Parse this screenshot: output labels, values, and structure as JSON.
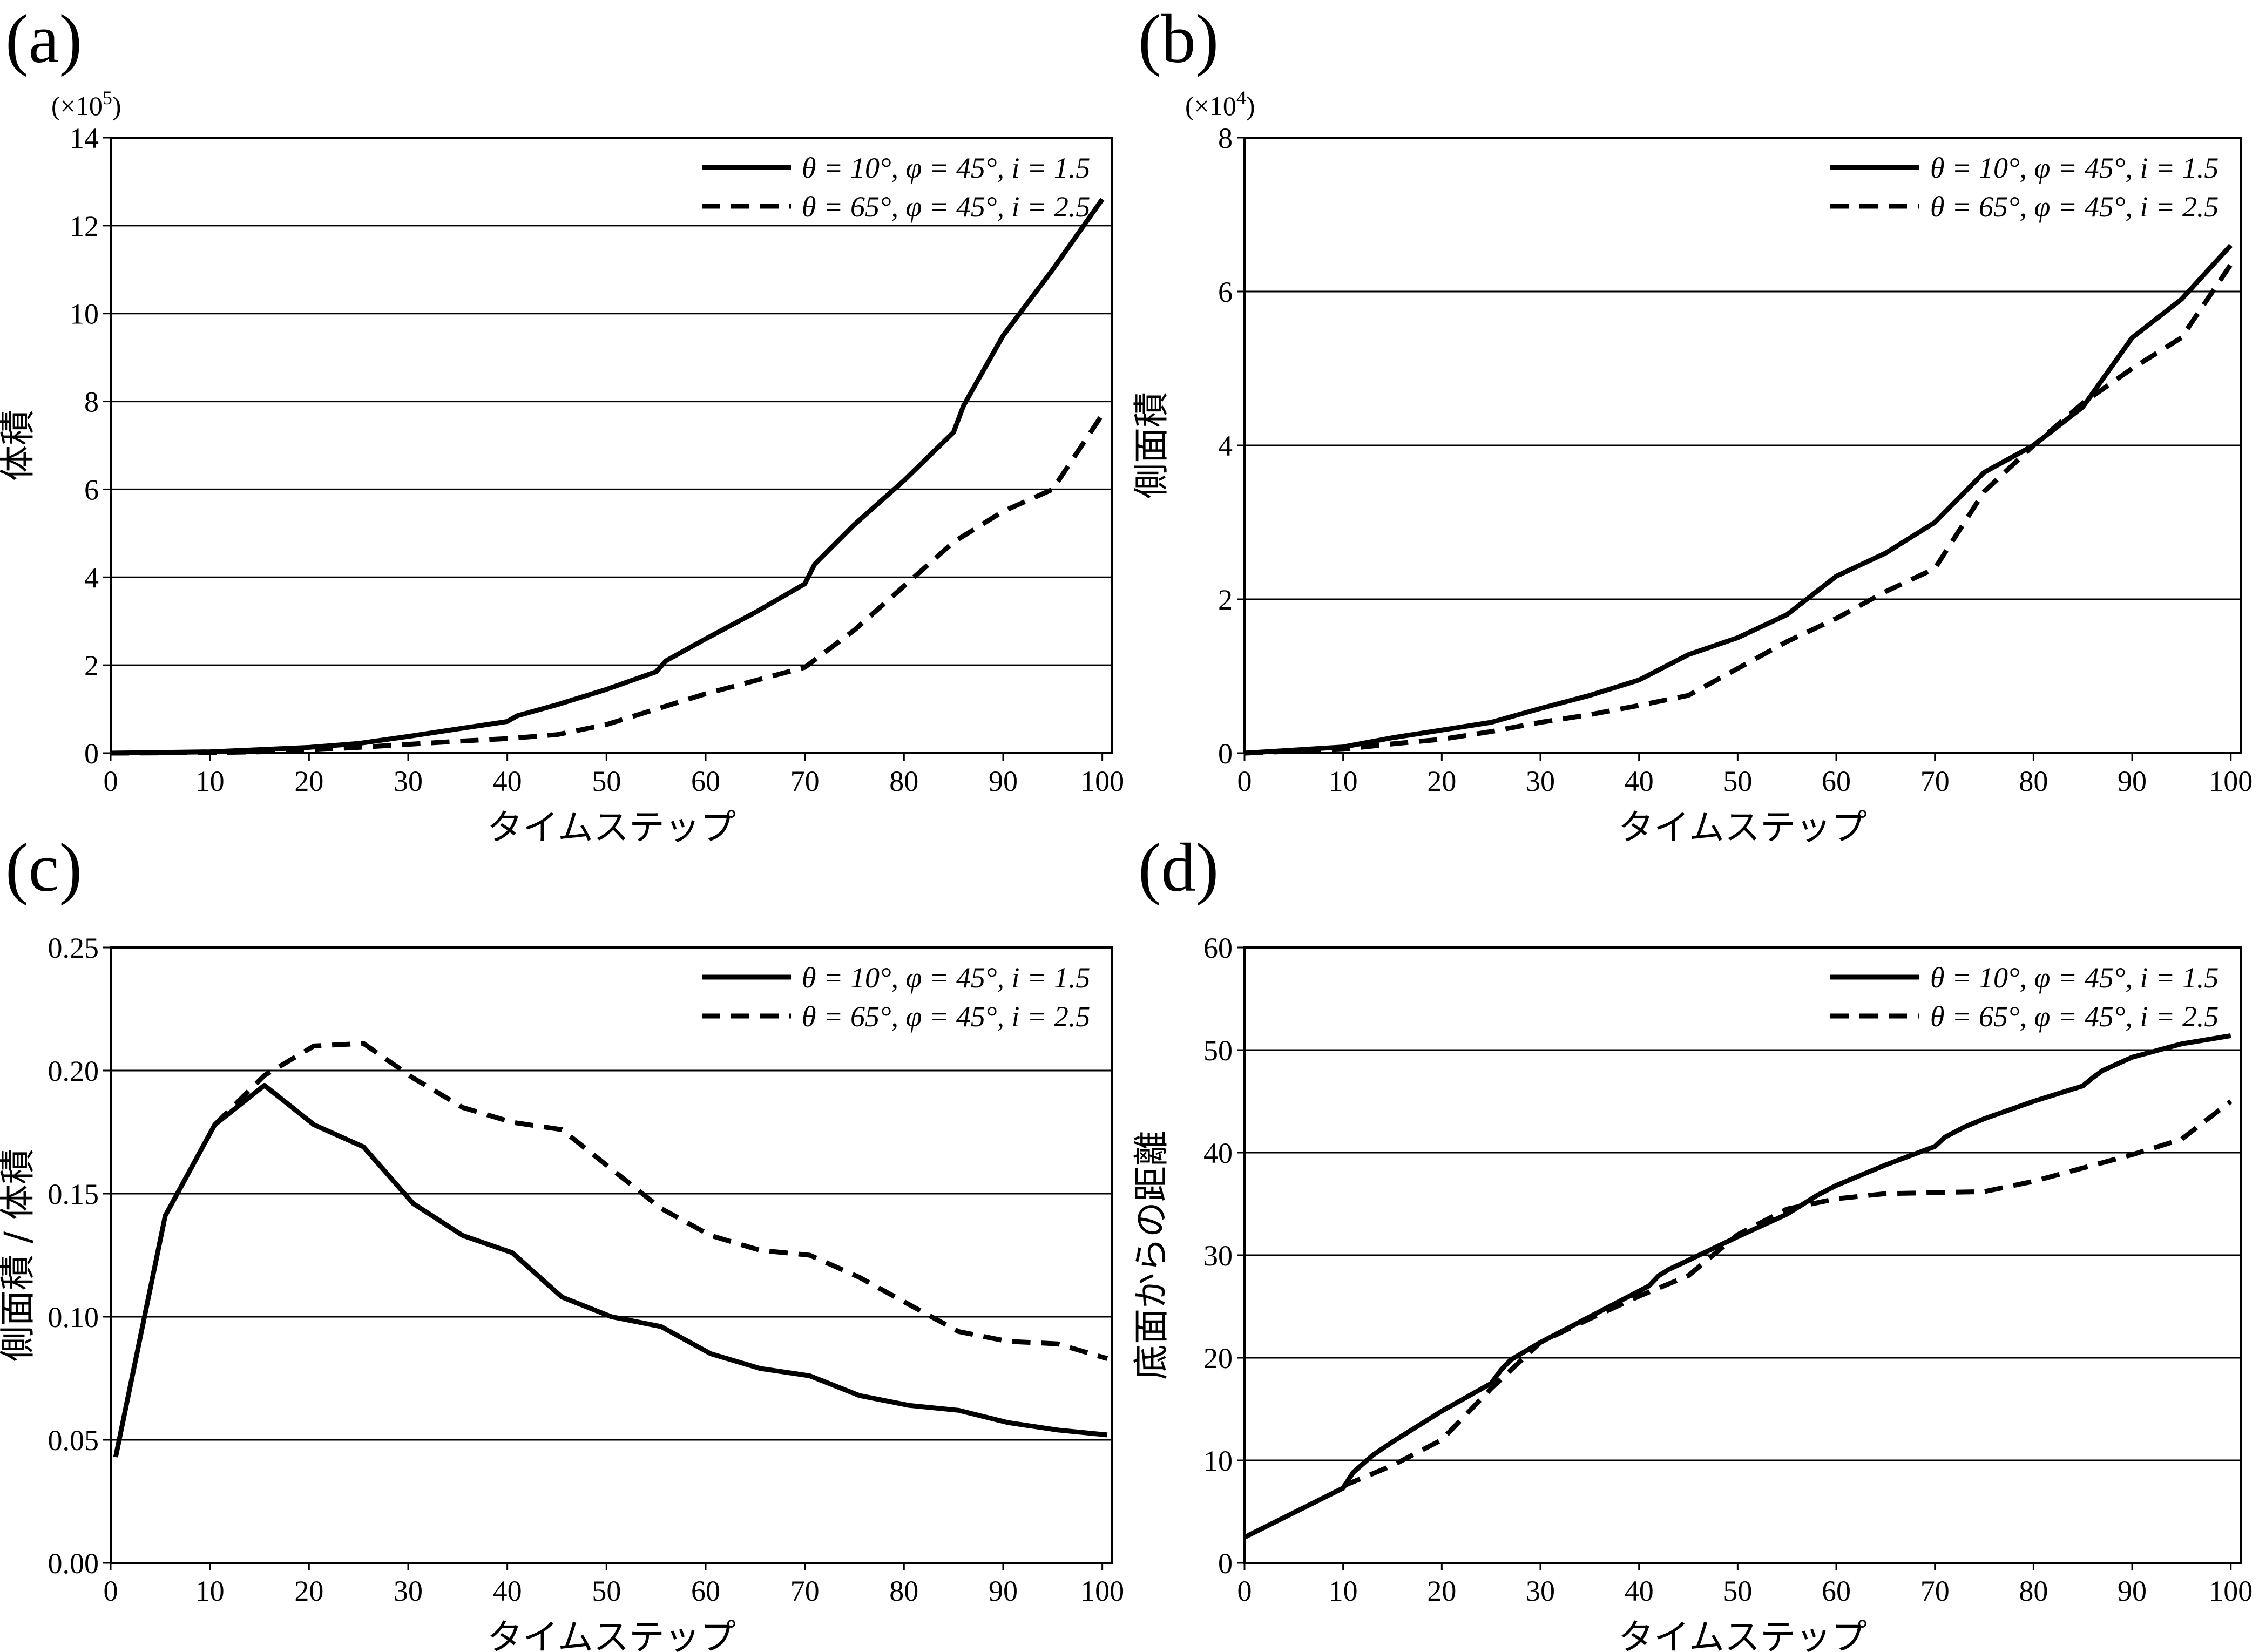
{
  "figure": {
    "legend_labels": [
      "θ = 10°, φ = 45°, i = 1.5",
      "θ = 65°, φ = 45°, i = 2.5"
    ]
  },
  "chart_data": [
    {
      "panel": "(a)",
      "type": "line",
      "xlabel": "タイムステップ",
      "ylabel": "体積",
      "scale_note": "(×10⁵)",
      "xlim": [
        0,
        101
      ],
      "ylim": [
        0,
        14
      ],
      "xticks": [
        0,
        10,
        20,
        30,
        40,
        50,
        60,
        70,
        80,
        90,
        100
      ],
      "yticks": [
        0,
        2,
        4,
        6,
        8,
        10,
        12,
        14
      ],
      "grid": "horizontal",
      "legend_position": "top-right",
      "series": [
        {
          "name": "θ = 10°, φ = 45°, i = 1.5",
          "style": "solid",
          "x": [
            0,
            10,
            20,
            25,
            30,
            35,
            40,
            41,
            45,
            50,
            55,
            56,
            60,
            65,
            70,
            71,
            75,
            80,
            85,
            86,
            90,
            95,
            100
          ],
          "y": [
            0,
            0.03,
            0.13,
            0.22,
            0.38,
            0.55,
            0.72,
            0.85,
            1.1,
            1.45,
            1.85,
            2.1,
            2.6,
            3.2,
            3.85,
            4.3,
            5.2,
            6.2,
            7.3,
            7.9,
            9.5,
            11.0,
            12.6
          ]
        },
        {
          "name": "θ = 65°, φ = 45°, i = 2.5",
          "style": "dashed",
          "x": [
            0,
            10,
            15,
            20,
            25,
            30,
            35,
            40,
            45,
            50,
            55,
            60,
            65,
            70,
            75,
            80,
            85,
            90,
            95,
            100
          ],
          "y": [
            0,
            0.01,
            0.03,
            0.07,
            0.13,
            0.2,
            0.27,
            0.33,
            0.42,
            0.65,
            1.0,
            1.35,
            1.65,
            1.95,
            2.8,
            3.8,
            4.8,
            5.5,
            6.0,
            7.7
          ]
        }
      ]
    },
    {
      "panel": "(b)",
      "type": "line",
      "xlabel": "タイムステップ",
      "ylabel": "側面積",
      "scale_note": "(×10⁴)",
      "xlim": [
        0,
        101
      ],
      "ylim": [
        0,
        8
      ],
      "xticks": [
        0,
        10,
        20,
        30,
        40,
        50,
        60,
        70,
        80,
        90,
        100
      ],
      "yticks": [
        0,
        2,
        4,
        6,
        8
      ],
      "grid": "horizontal",
      "legend_position": "top-right",
      "series": [
        {
          "name": "θ = 10°, φ = 45°, i = 1.5",
          "style": "solid",
          "x": [
            0,
            10,
            15,
            20,
            25,
            30,
            35,
            40,
            45,
            50,
            55,
            60,
            65,
            70,
            75,
            80,
            85,
            90,
            95,
            100
          ],
          "y": [
            0,
            0.08,
            0.2,
            0.3,
            0.4,
            0.58,
            0.75,
            0.95,
            1.28,
            1.5,
            1.8,
            2.3,
            2.6,
            3.0,
            3.65,
            4.0,
            4.5,
            5.4,
            5.9,
            6.6
          ]
        },
        {
          "name": "θ = 65°, φ = 45°, i = 2.5",
          "style": "dashed",
          "x": [
            0,
            10,
            15,
            20,
            25,
            30,
            35,
            40,
            45,
            50,
            55,
            60,
            65,
            70,
            75,
            80,
            85,
            90,
            95,
            100
          ],
          "y": [
            0,
            0.05,
            0.12,
            0.18,
            0.28,
            0.4,
            0.5,
            0.62,
            0.75,
            1.1,
            1.45,
            1.75,
            2.1,
            2.4,
            3.4,
            4.0,
            4.55,
            5.0,
            5.4,
            6.35
          ]
        }
      ]
    },
    {
      "panel": "(c)",
      "type": "line",
      "xlabel": "タイムステップ",
      "ylabel": "側面積 / 体積",
      "xlim": [
        0,
        101
      ],
      "ylim": [
        0,
        0.25
      ],
      "xticks": [
        0,
        10,
        20,
        30,
        40,
        50,
        60,
        70,
        80,
        90,
        100
      ],
      "yticks": [
        0.0,
        0.05,
        0.1,
        0.15,
        0.2,
        0.25
      ],
      "ytick_labels": [
        "0.00",
        "0.05",
        "0.10",
        "0.15",
        "0.20",
        "0.25"
      ],
      "grid": "horizontal",
      "legend_position": "top-right",
      "series": [
        {
          "name": "θ = 10°, φ = 45°, i = 1.5",
          "style": "solid",
          "x": [
            0.5,
            5.5,
            10.5,
            15.5,
            20.5,
            25.5,
            30.5,
            35.5,
            40.5,
            45.5,
            50.5,
            55.5,
            60.5,
            65.5,
            70.5,
            75.5,
            80.5,
            85.5,
            90.5,
            95.5,
            100.5
          ],
          "y": [
            0.043,
            0.141,
            0.178,
            0.194,
            0.178,
            0.169,
            0.146,
            0.133,
            0.126,
            0.108,
            0.1,
            0.096,
            0.085,
            0.079,
            0.076,
            0.068,
            0.064,
            0.062,
            0.057,
            0.054,
            0.052
          ]
        },
        {
          "name": "θ = 65°, φ = 45°, i = 2.5",
          "style": "dashed",
          "x": [
            10.5,
            15.5,
            20.5,
            25.5,
            30.5,
            35.5,
            40.5,
            45.5,
            50.5,
            55.5,
            60.5,
            65.5,
            70.5,
            75.5,
            80.5,
            85.5,
            90.5,
            95.5,
            100.5
          ],
          "y": [
            0.178,
            0.198,
            0.21,
            0.211,
            0.197,
            0.185,
            0.179,
            0.176,
            0.16,
            0.144,
            0.133,
            0.127,
            0.125,
            0.116,
            0.105,
            0.094,
            0.09,
            0.089,
            0.083
          ]
        }
      ]
    },
    {
      "panel": "(d)",
      "type": "line",
      "xlabel": "タイムステップ",
      "ylabel": "底面からの距離",
      "xlim": [
        0,
        101
      ],
      "ylim": [
        0,
        60
      ],
      "xticks": [
        0,
        10,
        20,
        30,
        40,
        50,
        60,
        70,
        80,
        90,
        100
      ],
      "yticks": [
        0,
        10,
        20,
        30,
        40,
        50,
        60
      ],
      "grid": "horizontal",
      "legend_position": "top-right",
      "series": [
        {
          "name": "θ = 10°, φ = 45°, i = 1.5",
          "style": "solid",
          "x": [
            0,
            10,
            11,
            13,
            15,
            20,
            25,
            26,
            27,
            30,
            35,
            40,
            41,
            42,
            43,
            45,
            50,
            55,
            56,
            58,
            60,
            65,
            70,
            71,
            72,
            73,
            75,
            80,
            85,
            86,
            87,
            90,
            95,
            100
          ],
          "y": [
            2.5,
            7.3,
            8.8,
            10.5,
            11.8,
            14.8,
            17.5,
            18.8,
            19.8,
            21.5,
            24.0,
            26.5,
            27.0,
            28.0,
            28.6,
            29.5,
            31.8,
            34.0,
            34.6,
            35.8,
            36.8,
            38.8,
            40.6,
            41.5,
            42.0,
            42.5,
            43.3,
            45.0,
            46.5,
            47.3,
            48.0,
            49.3,
            50.6,
            51.4
          ]
        },
        {
          "name": "θ = 65°, φ = 45°, i = 2.5",
          "style": "dashed",
          "x": [
            10,
            15,
            20,
            25,
            30,
            35,
            40,
            45,
            50,
            55,
            60,
            65,
            70,
            75,
            80,
            85,
            90,
            95,
            100
          ],
          "y": [
            7.5,
            9.5,
            12.0,
            17.0,
            21.5,
            23.8,
            26.0,
            28.0,
            32.0,
            34.5,
            35.5,
            36.0,
            36.1,
            36.2,
            37.2,
            38.5,
            39.8,
            41.3,
            45.0
          ]
        }
      ]
    }
  ]
}
